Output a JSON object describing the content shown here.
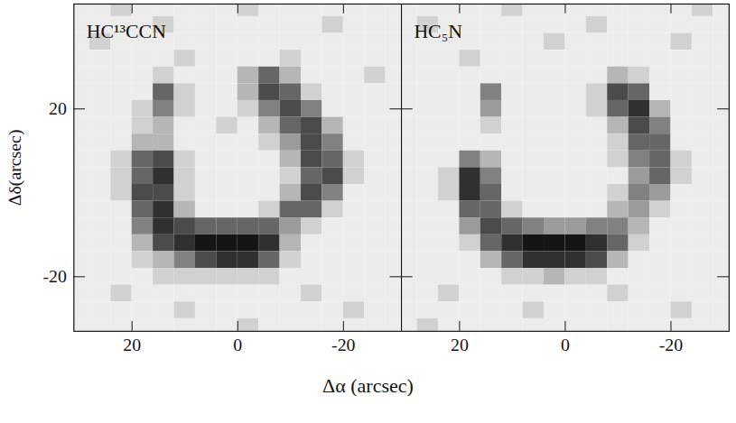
{
  "chart_data": [
    {
      "type": "heatmap",
      "title": "HC¹³CCN",
      "xlabel": "Δα (arcsec)",
      "ylabel": "Δδ(arcsec)",
      "xlim": [
        31,
        -31
      ],
      "ylim": [
        -33,
        45
      ],
      "xticks": [
        20,
        0,
        -20
      ],
      "yticks": [
        20,
        -20
      ],
      "x": [
        30,
        26,
        22,
        18,
        14,
        10,
        6,
        2,
        -2,
        -6,
        -10,
        -14,
        -18,
        -22,
        -26,
        -30
      ],
      "y": [
        44,
        40,
        36,
        32,
        28,
        24,
        20,
        16,
        12,
        8,
        4,
        0,
        -4,
        -8,
        -12,
        -16,
        -20,
        -24,
        -28,
        -32
      ],
      "cells": [
        [
          1,
          1,
          2,
          1,
          1,
          1,
          1,
          1,
          2,
          1,
          1,
          1,
          1,
          1,
          1,
          1
        ],
        [
          1,
          1,
          1,
          1,
          2,
          1,
          1,
          1,
          1,
          1,
          1,
          1,
          2,
          1,
          1,
          1
        ],
        [
          1,
          2,
          1,
          1,
          1,
          1,
          1,
          1,
          1,
          1,
          1,
          1,
          1,
          1,
          1,
          1
        ],
        [
          1,
          1,
          1,
          1,
          1,
          2,
          1,
          1,
          1,
          1,
          2,
          1,
          1,
          1,
          1,
          1
        ],
        [
          1,
          1,
          1,
          1,
          2,
          1,
          1,
          1,
          3,
          6,
          3,
          1,
          1,
          1,
          2,
          1
        ],
        [
          1,
          1,
          1,
          1,
          6,
          2,
          1,
          1,
          3,
          7,
          6,
          2,
          1,
          1,
          1,
          1
        ],
        [
          1,
          1,
          1,
          2,
          5,
          2,
          1,
          1,
          2,
          5,
          7,
          5,
          1,
          1,
          1,
          1
        ],
        [
          1,
          1,
          1,
          2,
          3,
          1,
          1,
          2,
          1,
          3,
          6,
          7,
          3,
          1,
          1,
          1
        ],
        [
          1,
          1,
          1,
          3,
          3,
          1,
          1,
          1,
          1,
          2,
          4,
          7,
          5,
          1,
          1,
          1
        ],
        [
          1,
          1,
          2,
          6,
          7,
          2,
          1,
          1,
          1,
          1,
          3,
          7,
          6,
          2,
          1,
          1
        ],
        [
          1,
          1,
          2,
          6,
          8,
          2,
          1,
          1,
          1,
          1,
          2,
          6,
          7,
          2,
          1,
          1
        ],
        [
          1,
          1,
          2,
          7,
          7,
          2,
          1,
          1,
          1,
          1,
          3,
          7,
          5,
          1,
          1,
          1
        ],
        [
          1,
          1,
          1,
          6,
          8,
          3,
          1,
          1,
          1,
          2,
          6,
          6,
          2,
          1,
          1,
          1
        ],
        [
          1,
          1,
          1,
          5,
          8,
          7,
          6,
          6,
          6,
          6,
          4,
          2,
          1,
          1,
          1,
          1
        ],
        [
          1,
          1,
          1,
          3,
          7,
          8,
          9,
          9,
          9,
          8,
          3,
          1,
          1,
          1,
          1,
          1
        ],
        [
          1,
          1,
          1,
          2,
          3,
          5,
          7,
          8,
          8,
          6,
          2,
          1,
          1,
          1,
          1,
          1
        ],
        [
          1,
          1,
          1,
          1,
          2,
          2,
          2,
          2,
          2,
          2,
          1,
          1,
          1,
          1,
          1,
          1
        ],
        [
          1,
          1,
          2,
          1,
          1,
          1,
          1,
          1,
          1,
          1,
          1,
          2,
          1,
          1,
          1,
          1
        ],
        [
          1,
          1,
          1,
          1,
          1,
          2,
          1,
          1,
          1,
          1,
          1,
          1,
          1,
          2,
          1,
          1
        ],
        [
          1,
          1,
          1,
          1,
          1,
          1,
          1,
          1,
          2,
          1,
          1,
          1,
          1,
          1,
          1,
          1
        ]
      ]
    },
    {
      "type": "heatmap",
      "title": "HC₅N",
      "tick_labels": "x",
      "xlim": [
        31,
        -31
      ],
      "ylim": [
        -33,
        45
      ],
      "xticks": [
        20,
        0,
        -20
      ],
      "yticks": [
        20,
        -20
      ],
      "x": [
        30,
        26,
        22,
        18,
        14,
        10,
        6,
        2,
        -2,
        -6,
        -10,
        -14,
        -18,
        -22,
        -26,
        -30
      ],
      "y": [
        44,
        40,
        36,
        32,
        28,
        24,
        20,
        16,
        12,
        8,
        4,
        0,
        -4,
        -8,
        -12,
        -16,
        -20,
        -24,
        -28,
        -32
      ],
      "cells": [
        [
          1,
          1,
          1,
          1,
          1,
          2,
          1,
          1,
          1,
          1,
          1,
          1,
          1,
          1,
          2,
          1
        ],
        [
          1,
          2,
          1,
          1,
          1,
          1,
          1,
          1,
          1,
          2,
          1,
          1,
          1,
          1,
          1,
          1
        ],
        [
          1,
          1,
          1,
          1,
          1,
          1,
          1,
          2,
          1,
          1,
          1,
          1,
          1,
          2,
          1,
          1
        ],
        [
          1,
          1,
          1,
          2,
          1,
          1,
          1,
          1,
          1,
          1,
          1,
          1,
          1,
          1,
          1,
          1
        ],
        [
          1,
          1,
          1,
          1,
          1,
          1,
          1,
          1,
          1,
          1,
          3,
          2,
          1,
          1,
          1,
          1
        ],
        [
          1,
          1,
          1,
          1,
          5,
          1,
          1,
          1,
          1,
          2,
          7,
          6,
          1,
          1,
          1,
          1
        ],
        [
          1,
          1,
          1,
          1,
          4,
          1,
          1,
          1,
          1,
          2,
          6,
          8,
          3,
          1,
          1,
          1
        ],
        [
          1,
          1,
          1,
          1,
          2,
          1,
          1,
          1,
          1,
          1,
          3,
          7,
          5,
          1,
          1,
          1
        ],
        [
          1,
          1,
          1,
          1,
          1,
          1,
          1,
          1,
          1,
          1,
          2,
          6,
          6,
          1,
          1,
          1
        ],
        [
          1,
          1,
          1,
          5,
          3,
          1,
          1,
          1,
          1,
          1,
          2,
          5,
          6,
          2,
          1,
          1
        ],
        [
          1,
          1,
          2,
          8,
          5,
          1,
          1,
          1,
          1,
          1,
          1,
          4,
          6,
          2,
          1,
          1
        ],
        [
          1,
          1,
          2,
          8,
          6,
          1,
          1,
          1,
          1,
          1,
          2,
          5,
          4,
          1,
          1,
          1
        ],
        [
          1,
          1,
          1,
          6,
          6,
          2,
          1,
          1,
          1,
          1,
          3,
          4,
          2,
          1,
          1,
          1
        ],
        [
          1,
          1,
          1,
          4,
          7,
          6,
          5,
          4,
          4,
          5,
          5,
          3,
          1,
          1,
          1,
          1
        ],
        [
          1,
          1,
          1,
          2,
          6,
          8,
          9,
          9,
          9,
          8,
          6,
          2,
          1,
          1,
          1,
          1
        ],
        [
          1,
          1,
          1,
          1,
          3,
          6,
          8,
          8,
          8,
          7,
          3,
          1,
          1,
          1,
          1,
          1
        ],
        [
          1,
          1,
          1,
          1,
          1,
          2,
          2,
          3,
          2,
          2,
          1,
          1,
          1,
          1,
          1,
          1
        ],
        [
          1,
          1,
          2,
          1,
          1,
          1,
          1,
          1,
          1,
          1,
          2,
          1,
          1,
          1,
          1,
          1
        ],
        [
          1,
          1,
          1,
          1,
          1,
          1,
          2,
          1,
          1,
          1,
          1,
          1,
          1,
          2,
          1,
          1
        ],
        [
          1,
          2,
          1,
          1,
          1,
          1,
          1,
          1,
          1,
          1,
          1,
          1,
          1,
          1,
          1,
          1
        ]
      ]
    }
  ]
}
